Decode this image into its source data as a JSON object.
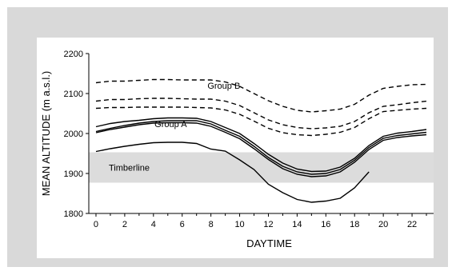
{
  "chart_data": {
    "type": "line",
    "xlabel": "DAYTIME",
    "ylabel": "MEAN ALTITUDE (m a.s.l.)",
    "xlim": [
      -0.5,
      23.5
    ],
    "ylim": [
      1800,
      2200
    ],
    "x_ticks": [
      0,
      2,
      4,
      6,
      8,
      10,
      12,
      14,
      16,
      18,
      20,
      22
    ],
    "y_ticks": [
      1800,
      1900,
      2000,
      2100,
      2200
    ],
    "band": {
      "label": "Timberline",
      "y0": 1877,
      "y1": 1953,
      "color": "#dcdcdc"
    },
    "annotations": [
      {
        "text": "Group B",
        "x": 8.9,
        "y": 2112
      },
      {
        "text": "Group A",
        "x": 5.2,
        "y": 2016
      }
    ],
    "group_labels": {
      "group_b": "Group B",
      "group_a": "Group A"
    },
    "series": [
      {
        "group": "B",
        "style": "dashed",
        "x": [
          0,
          1,
          2,
          3,
          4,
          5,
          6,
          7,
          8,
          9,
          10,
          11,
          12,
          13,
          14,
          15,
          16,
          17,
          18,
          19,
          20,
          21,
          22,
          23
        ],
        "values": [
          2127,
          2131,
          2131,
          2133,
          2135,
          2135,
          2134,
          2134,
          2134,
          2129,
          2118,
          2100,
          2082,
          2068,
          2058,
          2054,
          2057,
          2061,
          2073,
          2096,
          2113,
          2118,
          2122,
          2123
        ]
      },
      {
        "group": "B",
        "style": "dashed",
        "x": [
          0,
          1,
          2,
          3,
          4,
          5,
          6,
          7,
          8,
          9,
          10,
          11,
          12,
          13,
          14,
          15,
          16,
          17,
          18,
          19,
          20,
          21,
          22,
          23
        ],
        "values": [
          2081,
          2085,
          2085,
          2087,
          2088,
          2088,
          2087,
          2086,
          2086,
          2081,
          2070,
          2052,
          2034,
          2022,
          2015,
          2012,
          2014,
          2018,
          2030,
          2052,
          2068,
          2072,
          2077,
          2081
        ]
      },
      {
        "group": "B",
        "style": "dashed",
        "x": [
          0,
          1,
          2,
          3,
          4,
          5,
          6,
          7,
          8,
          9,
          10,
          11,
          12,
          13,
          14,
          15,
          16,
          17,
          18,
          19,
          20,
          21,
          22,
          23
        ],
        "values": [
          2063,
          2065,
          2065,
          2066,
          2066,
          2066,
          2066,
          2065,
          2064,
          2059,
          2048,
          2031,
          2013,
          2002,
          1997,
          1995,
          1998,
          2003,
          2015,
          2037,
          2055,
          2058,
          2061,
          2063
        ]
      },
      {
        "group": "A",
        "style": "solid",
        "x": [
          0,
          1,
          2,
          3,
          4,
          5,
          6,
          7,
          8,
          9,
          10,
          11,
          12,
          13,
          14,
          15,
          16,
          17,
          18,
          19,
          20,
          21,
          22,
          23
        ],
        "values": [
          2017,
          2025,
          2030,
          2033,
          2037,
          2039,
          2039,
          2038,
          2030,
          2015,
          2000,
          1975,
          1948,
          1926,
          1911,
          1905,
          1906,
          1916,
          1938,
          1970,
          1993,
          2001,
          2005,
          2010
        ]
      },
      {
        "group": "A",
        "style": "solid",
        "x": [
          0,
          1,
          2,
          3,
          4,
          5,
          6,
          7,
          8,
          9,
          10,
          11,
          12,
          13,
          14,
          15,
          16,
          17,
          18,
          19,
          20,
          21,
          22,
          23
        ],
        "values": [
          2005,
          2013,
          2020,
          2026,
          2030,
          2032,
          2032,
          2032,
          2024,
          2008,
          1993,
          1968,
          1940,
          1918,
          1904,
          1898,
          1900,
          1910,
          1933,
          1965,
          1988,
          1995,
          1999,
          2003
        ]
      },
      {
        "group": "A",
        "style": "solid",
        "x": [
          0,
          1,
          2,
          3,
          4,
          5,
          6,
          7,
          8,
          9,
          10,
          11,
          12,
          13,
          14,
          15,
          16,
          17,
          18,
          19,
          20,
          21,
          22,
          23
        ],
        "values": [
          2002,
          2010,
          2016,
          2022,
          2026,
          2027,
          2027,
          2026,
          2018,
          2003,
          1987,
          1962,
          1935,
          1912,
          1898,
          1892,
          1894,
          1904,
          1928,
          1960,
          1983,
          1990,
          1994,
          1997
        ]
      },
      {
        "group": "A",
        "style": "solid",
        "x": [
          0,
          1,
          2,
          3,
          4,
          5,
          6,
          7,
          8,
          9,
          10,
          11,
          12,
          13,
          14,
          15,
          16,
          17,
          18,
          19
        ],
        "values": [
          1955,
          1962,
          1968,
          1973,
          1977,
          1978,
          1978,
          1975,
          1961,
          1956,
          1934,
          1910,
          1873,
          1852,
          1835,
          1828,
          1831,
          1838,
          1864,
          1904
        ]
      }
    ]
  }
}
